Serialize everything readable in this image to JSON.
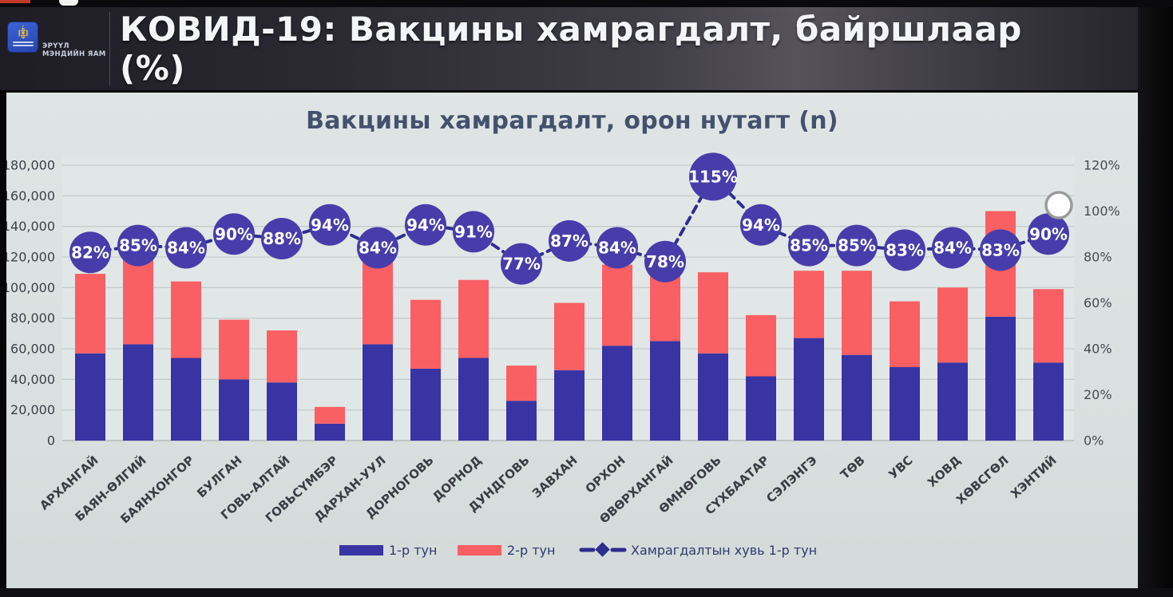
{
  "header": {
    "title": "КОВИД-19: Вакцины хамрагдалт, байршлаар (%)",
    "logo": {
      "caption_line1": "ЭРҮҮЛ",
      "caption_line2": "МЭНДИЙН ЯАМ"
    }
  },
  "chart_data": {
    "type": "bar",
    "subtype": "stacked-bars-with-percentage-line",
    "title": "Вакцины хамрагдалт, орон нутагт (n)",
    "categories": [
      "АРХАНГАЙ",
      "БАЯН-ӨЛГИЙ",
      "БАЯНХОНГОР",
      "БУЛГАН",
      "ГОВЬ-АЛТАЙ",
      "ГОВЬСҮМБЭР",
      "ДАРХАН-УУЛ",
      "ДОРНОГОВЬ",
      "ДОРНОД",
      "ДУНДГОВЬ",
      "ЗАВХАН",
      "ОРХОН",
      "ӨВӨРХАНГАЙ",
      "ӨМНӨГОВЬ",
      "СҮХБААТАР",
      "СЭЛЭНГЭ",
      "ТӨВ",
      "УВС",
      "ХОВД",
      "ХӨВСГӨЛ",
      "ХЭНТИЙ"
    ],
    "series": [
      {
        "name": "1-р тун",
        "type": "bar",
        "stack": "doses",
        "color": "#3934a4",
        "values": [
          57000,
          63000,
          54000,
          40000,
          38000,
          11000,
          63000,
          47000,
          54000,
          26000,
          46000,
          62000,
          65000,
          57000,
          42000,
          67000,
          56000,
          48000,
          51000,
          81000,
          51000
        ]
      },
      {
        "name": "2-р тун",
        "type": "bar",
        "stack": "doses",
        "color": "#fa5f64",
        "values": [
          52000,
          63000,
          50000,
          39000,
          34000,
          11000,
          55000,
          45000,
          51000,
          23000,
          44000,
          53000,
          44000,
          53000,
          40000,
          44000,
          55000,
          43000,
          49000,
          69000,
          48000
        ]
      },
      {
        "name": "Хамрагдалтын хувь 1-р тун",
        "type": "line",
        "axis": "right",
        "color": "#2e2e8e",
        "marker": "bubble",
        "bubble_color": "#473daa",
        "values_pct": [
          82,
          85,
          84,
          90,
          88,
          94,
          84,
          94,
          91,
          77,
          87,
          84,
          78,
          115,
          94,
          85,
          85,
          83,
          84,
          83,
          90
        ]
      }
    ],
    "left_axis": {
      "min": 0,
      "max": 180000,
      "step": 20000,
      "tick_labels": [
        "0",
        "20,000",
        "40,000",
        "60,000",
        "80,000",
        "100,000",
        "120,000",
        "140,000",
        "160,000",
        "180,000"
      ]
    },
    "right_axis": {
      "min_pct": 0,
      "max_pct": 120,
      "step_pct": 20,
      "tick_labels": [
        "0%",
        "20%",
        "40%",
        "60%",
        "80%",
        "100%",
        "120%"
      ]
    },
    "grid": true,
    "legend_position": "bottom"
  },
  "pointer": {
    "shape": "white-circle",
    "near_value": "100%"
  },
  "colors": {
    "bar_dose1": "#3934a4",
    "bar_dose2": "#fa5f64",
    "line": "#2e2e8e",
    "bubble": "#473daa",
    "slide_bg": "#d9e0df",
    "header_bg": "#2b2932",
    "title_text": "#f4f5f8",
    "chart_title_text": "#44516e",
    "axis_text": "#3e4048",
    "legend_text": "#2e3a6e"
  }
}
